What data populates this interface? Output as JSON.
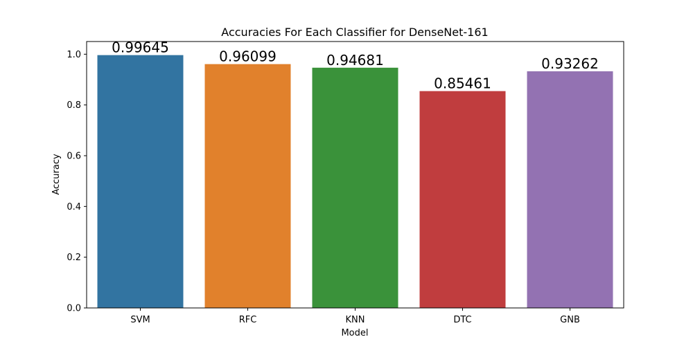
{
  "chart_data": {
    "type": "bar",
    "title": "Accuracies For Each Classifier for DenseNet-161",
    "xlabel": "Model",
    "ylabel": "Accuracy",
    "categories": [
      "SVM",
      "RFC",
      "KNN",
      "DTC",
      "GNB"
    ],
    "values": [
      0.99645,
      0.96099,
      0.94681,
      0.85461,
      0.93262
    ],
    "data_labels": [
      "0.99645",
      "0.96099",
      "0.94681",
      "0.85461",
      "0.93262"
    ],
    "colors": [
      "#3274a1",
      "#e1812c",
      "#3a923a",
      "#c03d3e",
      "#9372b2"
    ],
    "ylim": [
      0,
      1.05
    ],
    "yticks": [
      0.0,
      0.2,
      0.4,
      0.6,
      0.8,
      1.0
    ],
    "ytick_labels": [
      "0.0",
      "0.2",
      "0.4",
      "0.6",
      "0.8",
      "1.0"
    ],
    "grid": false,
    "legend": "none"
  }
}
